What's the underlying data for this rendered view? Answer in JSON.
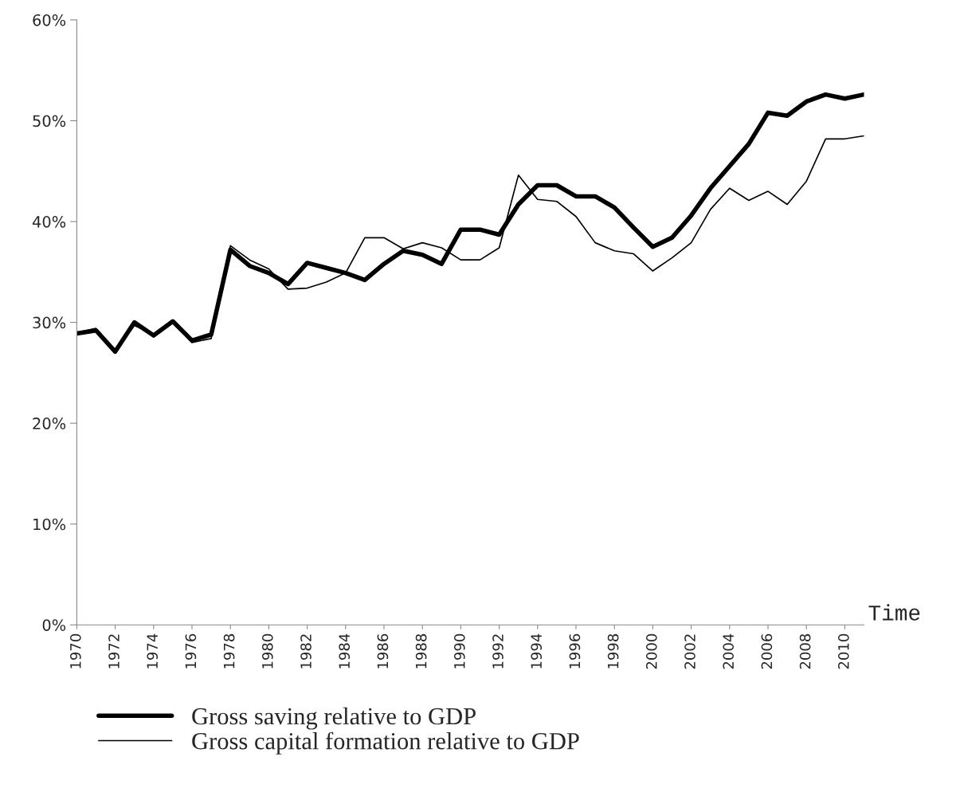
{
  "chart_data": {
    "type": "line",
    "xlabel": "Time",
    "x": [
      1970,
      1971,
      1972,
      1973,
      1974,
      1975,
      1976,
      1977,
      1978,
      1979,
      1980,
      1981,
      1982,
      1983,
      1984,
      1985,
      1986,
      1987,
      1988,
      1989,
      1990,
      1991,
      1992,
      1993,
      1994,
      1995,
      1996,
      1997,
      1998,
      1999,
      2000,
      2001,
      2002,
      2003,
      2004,
      2005,
      2006,
      2007,
      2008,
      2009,
      2010,
      2011
    ],
    "series": [
      {
        "name": "Gross saving relative to GDP",
        "color": "#000000",
        "values": [
          28.9,
          29.2,
          27.1,
          30.0,
          28.7,
          30.1,
          28.2,
          28.8,
          37.2,
          35.6,
          34.9,
          33.8,
          35.9,
          35.4,
          34.9,
          34.2,
          35.8,
          37.1,
          36.7,
          35.8,
          39.2,
          39.2,
          38.7,
          41.7,
          43.6,
          43.6,
          42.5,
          42.5,
          41.4,
          39.4,
          37.5,
          38.4,
          40.6,
          43.3,
          45.5,
          47.7,
          50.8,
          50.5,
          51.9,
          52.6,
          52.2,
          52.6
        ]
      },
      {
        "name": "Gross capital formation relative to GDP",
        "color": "#000000",
        "values": [
          29.0,
          29.4,
          27.2,
          29.7,
          28.8,
          30.1,
          28.0,
          28.4,
          37.6,
          36.2,
          35.3,
          33.3,
          33.4,
          34.0,
          34.9,
          38.4,
          38.4,
          37.3,
          37.9,
          37.4,
          36.2,
          36.2,
          37.4,
          44.6,
          42.2,
          42.0,
          40.5,
          37.9,
          37.1,
          36.8,
          35.1,
          36.4,
          37.9,
          41.2,
          43.3,
          42.1,
          43.0,
          41.7,
          44.0,
          48.2,
          48.2,
          48.5
        ]
      }
    ],
    "xlim": [
      1970,
      2011
    ],
    "xticks": [
      1970,
      1972,
      1974,
      1976,
      1978,
      1980,
      1982,
      1984,
      1986,
      1988,
      1990,
      1992,
      1994,
      1996,
      1998,
      2000,
      2002,
      2004,
      2006,
      2008,
      2010
    ],
    "ylim": [
      0,
      60
    ],
    "yticks": [
      {
        "value": 0,
        "label": "0%"
      },
      {
        "value": 10,
        "label": "10%"
      },
      {
        "value": 20,
        "label": "20%"
      },
      {
        "value": 30,
        "label": "30%"
      },
      {
        "value": 40,
        "label": "40%"
      },
      {
        "value": 50,
        "label": "50%"
      },
      {
        "value": 60,
        "label": "60%"
      }
    ],
    "grid": false,
    "legend": "bottom",
    "marker": "none",
    "line_style": "solid"
  }
}
